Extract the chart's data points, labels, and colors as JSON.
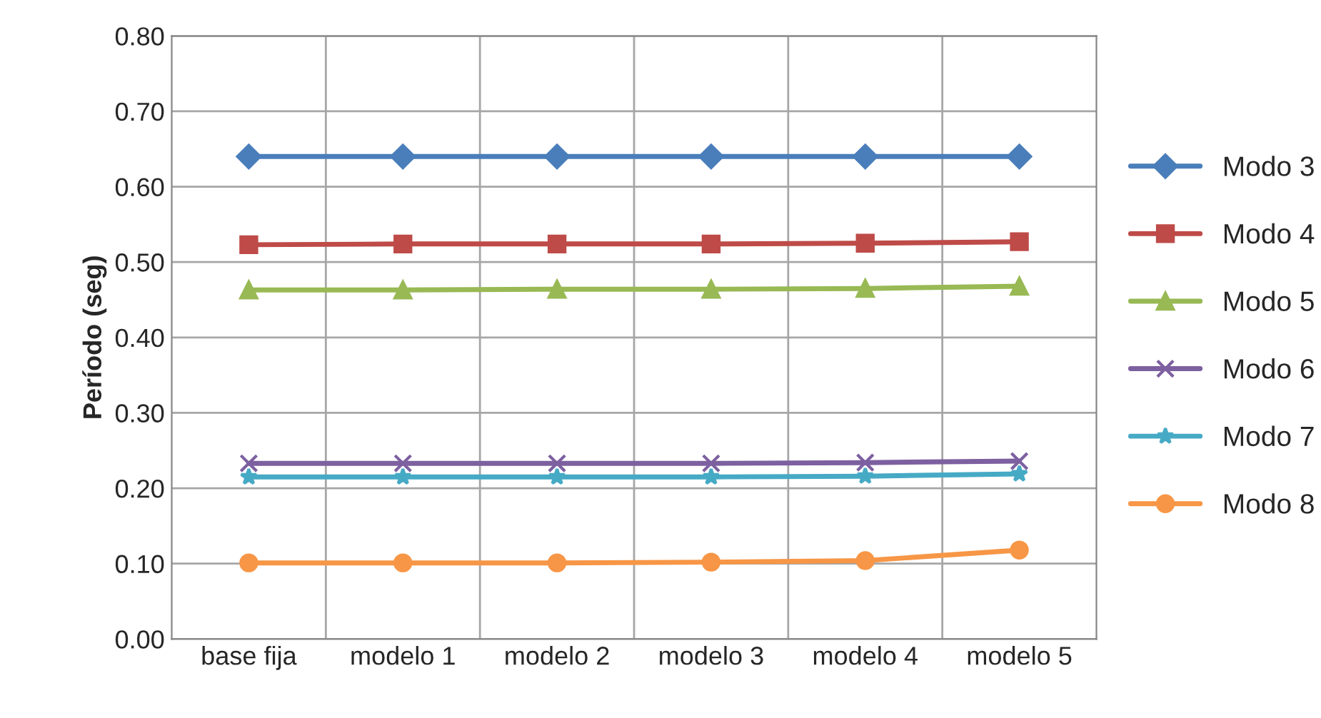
{
  "chart_data": {
    "type": "line",
    "ylabel": "Período (seg)",
    "categories": [
      "base fija",
      "modelo 1",
      "modelo 2",
      "modelo 3",
      "modelo 4",
      "modelo 5"
    ],
    "series": [
      {
        "name": "Modo 3",
        "color": "#4a7ebb",
        "marker": "diamond",
        "values": [
          0.64,
          0.64,
          0.64,
          0.64,
          0.64,
          0.64
        ]
      },
      {
        "name": "Modo 4",
        "color": "#be4b48",
        "marker": "square",
        "values": [
          0.523,
          0.524,
          0.524,
          0.524,
          0.525,
          0.527
        ]
      },
      {
        "name": "Modo 5",
        "color": "#98b954",
        "marker": "triangle",
        "values": [
          0.463,
          0.463,
          0.464,
          0.464,
          0.465,
          0.468
        ]
      },
      {
        "name": "Modo 6",
        "color": "#7d60a0",
        "marker": "cross",
        "values": [
          0.233,
          0.233,
          0.233,
          0.233,
          0.234,
          0.236
        ]
      },
      {
        "name": "Modo 7",
        "color": "#46aac5",
        "marker": "star",
        "values": [
          0.215,
          0.215,
          0.215,
          0.215,
          0.216,
          0.219
        ]
      },
      {
        "name": "Modo 8",
        "color": "#f79646",
        "marker": "circle",
        "values": [
          0.101,
          0.101,
          0.101,
          0.102,
          0.104,
          0.118
        ]
      }
    ],
    "ylim": [
      0,
      0.8
    ],
    "yticks": [
      {
        "value": 0,
        "label": "0.00"
      },
      {
        "value": 0.1,
        "label": "0.10"
      },
      {
        "value": 0.2,
        "label": "0.20"
      },
      {
        "value": 0.3,
        "label": "0.30"
      },
      {
        "value": 0.4,
        "label": "0.40"
      },
      {
        "value": 0.5,
        "label": "0.50"
      },
      {
        "value": 0.6,
        "label": "0.60"
      },
      {
        "value": 0.7,
        "label": "0.70"
      },
      {
        "value": 0.8,
        "label": "0.80"
      }
    ],
    "grid": true,
    "legend": "right"
  }
}
